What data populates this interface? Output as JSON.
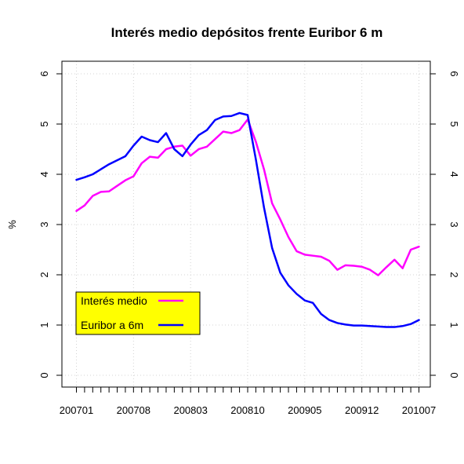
{
  "chart_data": {
    "type": "line",
    "title": "Interés medio depósitos frente Euribor 6 m",
    "xlabel": "",
    "ylabel": "%",
    "ylim": [
      0,
      6
    ],
    "yticks": [
      0,
      1,
      2,
      3,
      4,
      5,
      6
    ],
    "right_axis_ticks": [
      0,
      1,
      2,
      3,
      4,
      5,
      6
    ],
    "xtick_labels": [
      "200701",
      "200708",
      "200803",
      "200810",
      "200905",
      "200912",
      "201007"
    ],
    "grid": true,
    "legend": {
      "placement": "bottom-left",
      "background": "#ffff00",
      "entries": [
        "Interés medio",
        "Euribor a 6m"
      ]
    },
    "categories": [
      "200701",
      "200702",
      "200703",
      "200704",
      "200705",
      "200706",
      "200707",
      "200708",
      "200709",
      "200710",
      "200711",
      "200712",
      "200801",
      "200802",
      "200803",
      "200804",
      "200805",
      "200806",
      "200807",
      "200808",
      "200809",
      "200810",
      "200811",
      "200812",
      "200901",
      "200902",
      "200903",
      "200904",
      "200905",
      "200906",
      "200907",
      "200908",
      "200909",
      "200910",
      "200911",
      "200912",
      "201001",
      "201002",
      "201003",
      "201004",
      "201005",
      "201006",
      "201007"
    ],
    "series": [
      {
        "name": "Interés medio",
        "color": "#ff00ff",
        "values": [
          3.27,
          3.38,
          3.57,
          3.65,
          3.66,
          3.77,
          3.88,
          3.96,
          4.22,
          4.35,
          4.33,
          4.5,
          4.55,
          4.57,
          4.37,
          4.5,
          4.55,
          4.7,
          4.85,
          4.82,
          4.88,
          5.09,
          4.65,
          4.1,
          3.42,
          3.1,
          2.75,
          2.47,
          2.4,
          2.38,
          2.36,
          2.28,
          2.1,
          2.19,
          2.18,
          2.16,
          2.1,
          1.99,
          2.15,
          2.3,
          2.13,
          2.5,
          2.56
        ]
      },
      {
        "name": "Euribor a 6m",
        "color": "#0000ff",
        "values": [
          3.89,
          3.94,
          4.0,
          4.1,
          4.2,
          4.28,
          4.36,
          4.57,
          4.75,
          4.68,
          4.64,
          4.82,
          4.5,
          4.36,
          4.59,
          4.78,
          4.88,
          5.08,
          5.15,
          5.16,
          5.22,
          5.18,
          4.3,
          3.34,
          2.53,
          2.04,
          1.79,
          1.62,
          1.49,
          1.44,
          1.22,
          1.1,
          1.04,
          1.01,
          0.99,
          0.99,
          0.98,
          0.97,
          0.96,
          0.96,
          0.98,
          1.02,
          1.1
        ]
      }
    ]
  }
}
